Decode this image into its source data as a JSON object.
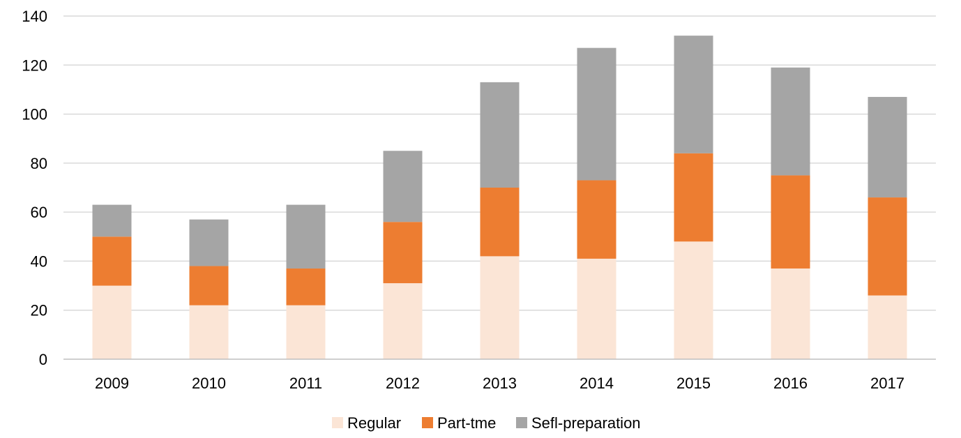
{
  "chart_data": {
    "type": "bar",
    "stacked": true,
    "title": "",
    "xlabel": "",
    "ylabel": "",
    "categories": [
      "2009",
      "2010",
      "2011",
      "2012",
      "2013",
      "2014",
      "2015",
      "2016",
      "2017"
    ],
    "ylim": [
      0,
      140
    ],
    "yticks": [
      0,
      20,
      40,
      60,
      80,
      100,
      120,
      140
    ],
    "grid": true,
    "legend_position": "bottom",
    "series": [
      {
        "name": "Regular",
        "color": "#FBE5D6",
        "values": [
          30,
          22,
          22,
          31,
          42,
          41,
          48,
          37,
          26
        ]
      },
      {
        "name": "Part-tme",
        "color": "#ED7D31",
        "values": [
          20,
          16,
          15,
          25,
          28,
          32,
          36,
          38,
          40
        ]
      },
      {
        "name": "Sefl-preparation",
        "color": "#A5A5A5",
        "values": [
          13,
          19,
          26,
          29,
          43,
          54,
          48,
          44,
          41
        ]
      }
    ]
  }
}
